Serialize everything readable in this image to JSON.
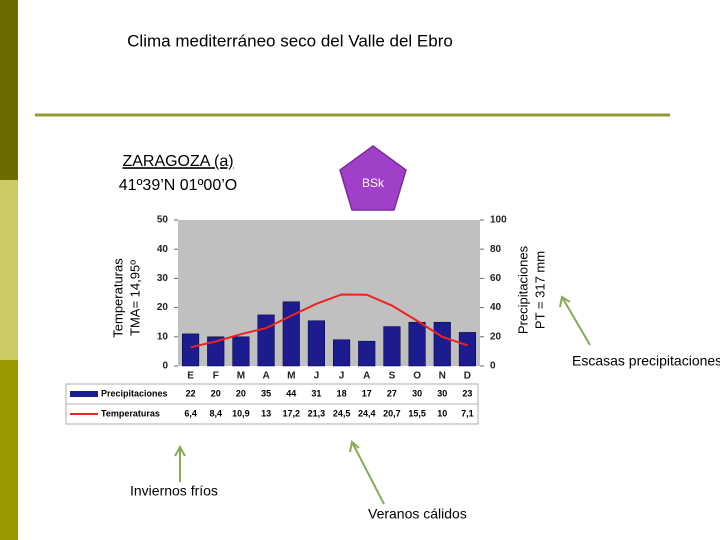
{
  "chart_data": {
    "type": "climograph",
    "title": "Clima mediterráneo seco del Valle del Ebro",
    "station": "ZARAGOZA (a)",
    "coordinates": "41º39’N 01º00’O",
    "climate_code": "BSk",
    "ylabel": [
      "Temperaturas",
      "TMA= 14,95º"
    ],
    "y2label": [
      "Precipitaciones",
      "PT = 317 mm"
    ],
    "categories": [
      "E",
      "F",
      "M",
      "A",
      "M",
      "J",
      "J",
      "A",
      "S",
      "O",
      "N",
      "D"
    ],
    "ylim": [
      0,
      50
    ],
    "yticks": [
      0,
      10,
      20,
      30,
      40,
      50
    ],
    "y2lim": [
      0,
      100
    ],
    "y2ticks": [
      0,
      20,
      40,
      60,
      80,
      100
    ],
    "series": [
      {
        "name": "Precipitaciones",
        "type": "bar",
        "axis": "y2",
        "color": "#1c1c8f",
        "values": [
          22,
          20,
          20,
          35,
          44,
          31,
          18,
          17,
          27,
          30,
          30,
          23
        ]
      },
      {
        "name": "Temperaturas",
        "type": "line",
        "axis": "y",
        "color": "#ee2222",
        "values": [
          6.4,
          8.4,
          10.9,
          13,
          17.2,
          21.3,
          24.5,
          24.4,
          20.7,
          15.5,
          10,
          7.1
        ],
        "value_labels": [
          "6,4",
          "8,4",
          "10,9",
          "13",
          "17,2",
          "21,3",
          "24,5",
          "24,4",
          "20,7",
          "15,5",
          "10",
          "7,1"
        ]
      }
    ],
    "annotations": [
      "Escasas precipitaciones",
      "Inviernos fríos",
      "Veranos cálidos"
    ]
  }
}
